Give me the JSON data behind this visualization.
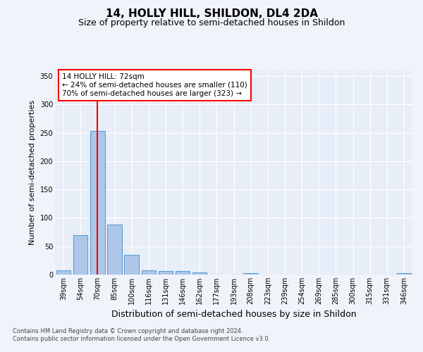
{
  "title1": "14, HOLLY HILL, SHILDON, DL4 2DA",
  "title2": "Size of property relative to semi-detached houses in Shildon",
  "xlabel": "Distribution of semi-detached houses by size in Shildon",
  "ylabel": "Number of semi-detached properties",
  "categories": [
    "39sqm",
    "54sqm",
    "70sqm",
    "85sqm",
    "100sqm",
    "116sqm",
    "131sqm",
    "146sqm",
    "162sqm",
    "177sqm",
    "193sqm",
    "208sqm",
    "223sqm",
    "239sqm",
    "254sqm",
    "269sqm",
    "285sqm",
    "300sqm",
    "315sqm",
    "331sqm",
    "346sqm"
  ],
  "values": [
    7,
    70,
    253,
    88,
    35,
    7,
    6,
    6,
    4,
    0,
    0,
    2,
    0,
    0,
    0,
    0,
    0,
    0,
    0,
    0,
    2
  ],
  "bar_color": "#aec6e8",
  "bar_edge_color": "#5a9fd4",
  "highlight_index": 2,
  "ylim": [
    0,
    360
  ],
  "yticks": [
    0,
    50,
    100,
    150,
    200,
    250,
    300,
    350
  ],
  "annotation_text": "14 HOLLY HILL: 72sqm\n← 24% of semi-detached houses are smaller (110)\n70% of semi-detached houses are larger (323) →",
  "footer1": "Contains HM Land Registry data © Crown copyright and database right 2024.",
  "footer2": "Contains public sector information licensed under the Open Government Licence v3.0.",
  "bg_color": "#f0f4fa",
  "plot_bg_color": "#e8eef8",
  "grid_color": "#ffffff",
  "title1_fontsize": 11,
  "title2_fontsize": 9,
  "ylabel_fontsize": 8,
  "xlabel_fontsize": 9,
  "tick_fontsize": 7,
  "annotation_fontsize": 7.5,
  "footer_fontsize": 6
}
